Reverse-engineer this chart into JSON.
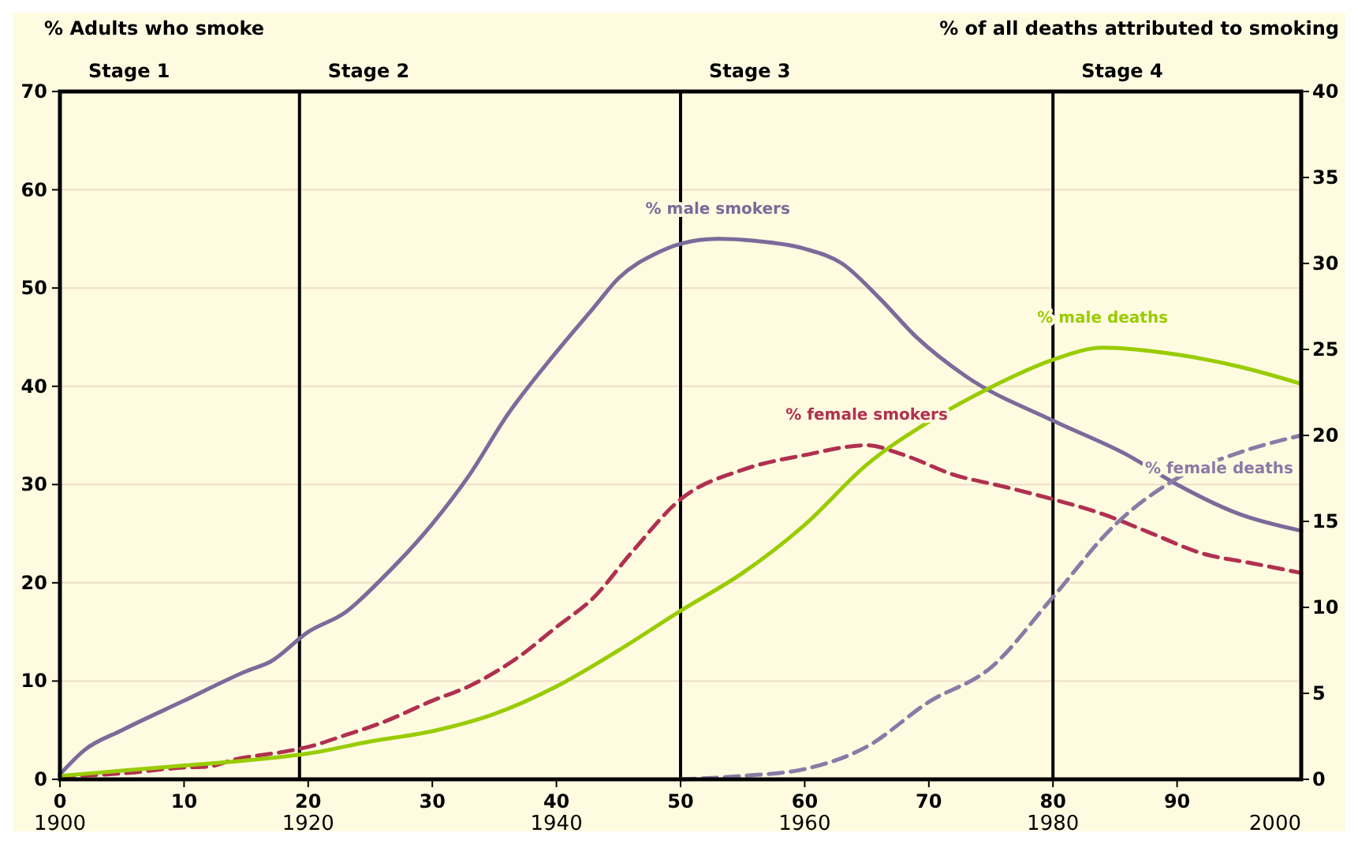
{
  "chart_data": {
    "type": "line",
    "ylabel": "% Adults who smoke",
    "y2label": "% of all deaths attributed to smoking",
    "xlim": [
      0,
      100
    ],
    "xticks": [
      0,
      10,
      20,
      30,
      40,
      50,
      60,
      70,
      80,
      90
    ],
    "x2lim": [
      1900,
      2000
    ],
    "x2ticks": [
      1900,
      1920,
      1940,
      1960,
      1980,
      2000
    ],
    "ylim": [
      0,
      70
    ],
    "yticks": [
      0,
      10,
      20,
      30,
      40,
      50,
      60,
      70
    ],
    "y2lim": [
      0,
      40
    ],
    "y2ticks": [
      0,
      5,
      10,
      15,
      20,
      25,
      30,
      35,
      40
    ],
    "grid": "y",
    "ref_lines": [
      {
        "axis": "x",
        "value": 19.3,
        "color": "#000000"
      },
      {
        "axis": "x",
        "value": 50,
        "color": "#000000"
      },
      {
        "axis": "x",
        "value": 80,
        "color": "#000000"
      }
    ],
    "annotations": [
      "Stage 1",
      "Stage 2",
      "Stage 3",
      "Stage 4"
    ],
    "series": [
      {
        "name": "% male smokers",
        "color": "#7b6a9a",
        "line_style": "solid",
        "x": [
          0,
          2,
          5,
          10,
          15,
          17,
          20,
          23,
          26,
          30,
          33,
          36,
          40,
          43,
          45,
          48,
          50,
          53,
          56,
          60,
          63,
          66,
          69,
          73,
          80,
          86,
          90,
          95,
          100
        ],
        "values": [
          0.5,
          3,
          5,
          8,
          11,
          12,
          15,
          17,
          20.5,
          26,
          31,
          37,
          43.5,
          48,
          51,
          53.5,
          54.5,
          55,
          54.8,
          54,
          52.5,
          49,
          45,
          41,
          36.5,
          33,
          30,
          27,
          25.3
        ]
      },
      {
        "name": "% female smokers",
        "color": "#b03050",
        "line_style": "dashed",
        "x": [
          0,
          5,
          10,
          12,
          14,
          18,
          20,
          23,
          26,
          30,
          33,
          37,
          40,
          43,
          46,
          50,
          55,
          60,
          65,
          68,
          72,
          76,
          80,
          84,
          88,
          92,
          96,
          100
        ],
        "values": [
          0.3,
          0.6,
          1.2,
          1.3,
          2,
          2.8,
          3.3,
          4.5,
          5.8,
          8,
          9.5,
          12.5,
          15.5,
          18.5,
          23,
          28.5,
          31.5,
          33,
          34,
          33,
          31,
          29.8,
          28.5,
          27,
          25,
          23,
          22,
          21
        ]
      },
      {
        "name": "% male deaths",
        "color": "#99cc00",
        "line_style": "solid",
        "axis": "y2",
        "x": [
          0,
          5,
          10,
          15,
          20,
          25,
          30,
          35,
          40,
          45,
          50,
          55,
          60,
          65,
          70,
          75,
          80,
          84,
          90,
          95,
          100
        ],
        "values": [
          0.2,
          0.5,
          0.8,
          1.1,
          1.5,
          2.2,
          2.8,
          3.8,
          5.4,
          7.5,
          9.8,
          12,
          14.8,
          18.3,
          20.8,
          22.8,
          24.4,
          25.1,
          24.7,
          24,
          23
        ]
      },
      {
        "name": "% female deaths",
        "color": "#8a7aa6",
        "line_style": "dashed",
        "axis": "y2",
        "x": [
          50,
          55,
          60,
          65,
          70,
          75,
          80,
          85,
          90,
          95,
          100
        ],
        "values": [
          0,
          0.2,
          0.6,
          1.9,
          4.5,
          6.5,
          10.6,
          14.8,
          17.5,
          19,
          20
        ]
      }
    ]
  }
}
